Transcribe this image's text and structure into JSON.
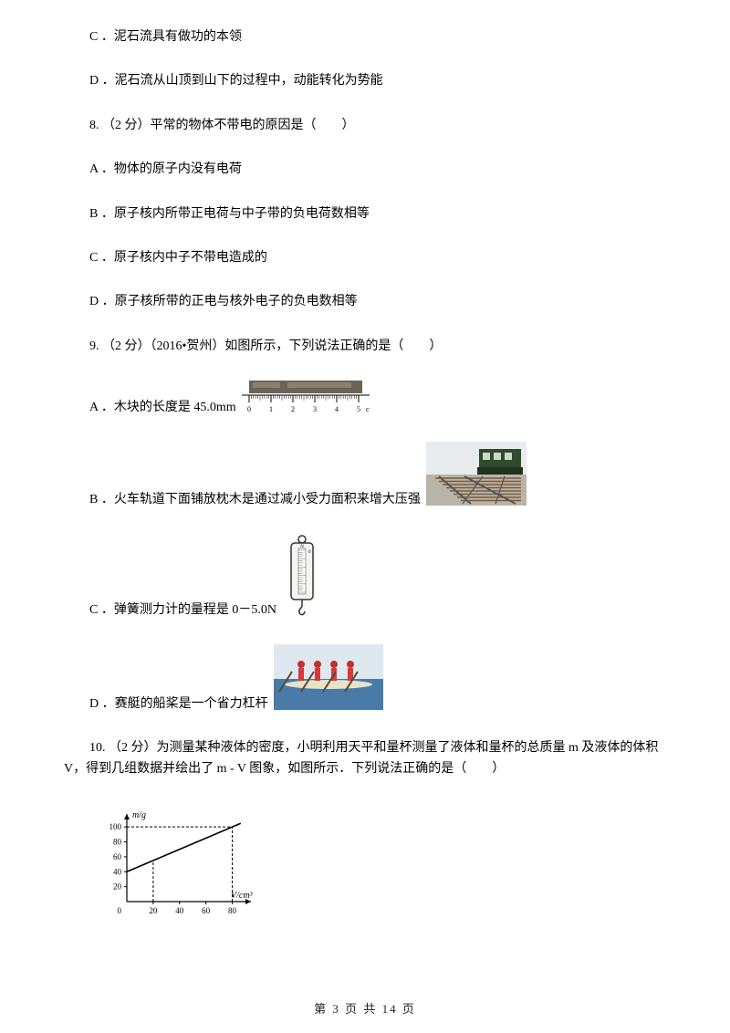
{
  "items": {
    "c7": "C ．泥石流具有做功的本领",
    "d7": "D ．泥石流从山顶到山下的过程中，动能转化为势能",
    "q8": "8.  （2 分）平常的物体不带电的原因是（　　）",
    "a8": "A ．物体的原子内没有电荷",
    "b8": "B ．原子核内所带正电荷与中子带的负电荷数相等",
    "c8": "C ．原子核内中子不带电造成的",
    "d8": "D ．原子核所带的正电与核外电子的负电数相等",
    "q9": "9.  （2 分）（2016•贺州）如图所示，下列说法正确的是（　　）",
    "a9": "A ．木块的长度是 45.0mm",
    "b9": "B ．火车轨道下面铺放枕木是通过减小受力面积来增大压强",
    "c9": "C ．弹簧测力计的量程是 0－5.0N",
    "d9": "D ．赛艇的船桨是一个省力杠杆",
    "q10": "10.  （2 分）为测量某种液体的密度，小明利用天平和量杯测量了液体和量杯的总质量 m 及液体的体积 V，得到几组数据并绘出了 m - V 图象，如图所示．下列说法正确的是（　　）"
  },
  "ruler": {
    "ticks": [
      "0",
      "1",
      "2",
      "3",
      "4",
      "5"
    ],
    "unit": "cm",
    "bar_color": "#6b6355",
    "line_color": "#000000"
  },
  "train": {
    "sky": "#e8ecef",
    "body": "#2f4a2f",
    "sleeper": "#7a5a3a",
    "rail": "#555555",
    "ground": "#b9b4a8"
  },
  "spring": {
    "outline": "#333333",
    "fill": "#ffffff",
    "grad": "#888888",
    "top_label": "N",
    "zero": "0"
  },
  "rowing": {
    "water": "#4a7aa8",
    "sky": "#dfe8ef",
    "boat": "#d63a3a",
    "person": "#c23030"
  },
  "graph": {
    "y_label": "m/g",
    "x_label": "V/cm³",
    "y_ticks": [
      "20",
      "40",
      "60",
      "80",
      "100"
    ],
    "x_ticks": [
      "20",
      "40",
      "60",
      "80"
    ],
    "axis_color": "#000000",
    "line_color": "#000000",
    "dash_color": "#000000",
    "intercept_y": 40,
    "point_x": 80,
    "point_y": 100,
    "yrange": [
      0,
      110
    ],
    "xrange": [
      0,
      90
    ]
  },
  "footer": "第 3 页 共 14 页"
}
